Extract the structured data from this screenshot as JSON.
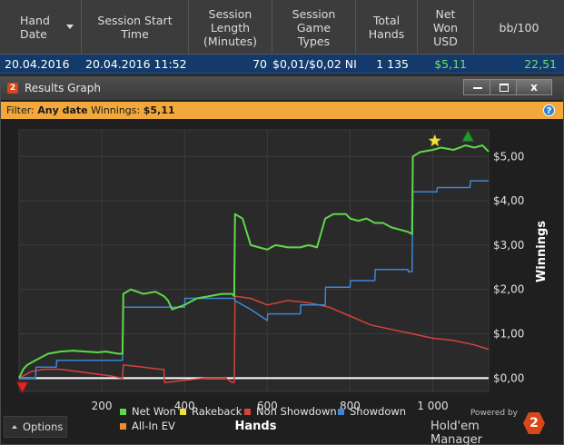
{
  "table": {
    "headers": [
      {
        "label": "Hand\nDate",
        "sortable": true
      },
      {
        "label": "Session Start\nTime"
      },
      {
        "label": "Session\nLength\n(Minutes)"
      },
      {
        "label": "Session\nGame\nTypes"
      },
      {
        "label": "Total\nHands"
      },
      {
        "label": "Net\nWon\nUSD"
      },
      {
        "label": "bb/100"
      }
    ],
    "row": {
      "hand_date": "20.04.2016",
      "start_time": "20.04.2016 11:52",
      "length": "70",
      "game_types": "$0,01/$0,02 NI",
      "total_hands": "1 135",
      "net_won": "$5,11",
      "bb100": "22,51"
    }
  },
  "window": {
    "title": "Results Graph",
    "badge": "2",
    "close_symbol": "x",
    "help_symbol": "?"
  },
  "filter": {
    "label": "Filter:",
    "date_value": "Any date",
    "winnings_label": "Winnings:",
    "winnings_value": "$5,11"
  },
  "options": {
    "label": "Options"
  },
  "brand": {
    "powered_by": "Powered by",
    "name": "Hold'em Manager",
    "logo_text": "2"
  },
  "colors": {
    "net_won": "#5fd84a",
    "rakeback": "#f0e03a",
    "non_showdown": "#d6423d",
    "showdown": "#3e86d6",
    "all_in_ev": "#f08a2a",
    "zero_line": "#ffffff"
  },
  "chart_data": {
    "type": "line",
    "xlabel": "Hands",
    "ylabel": "Winnings",
    "xlim": [
      0,
      1135
    ],
    "ylim": [
      -0.3,
      5.6
    ],
    "x_ticks": [
      200,
      400,
      600,
      800,
      1000
    ],
    "x_tick_labels": [
      "200",
      "400",
      "600",
      "800",
      "1 000"
    ],
    "y_ticks": [
      0,
      1,
      2,
      3,
      4,
      5
    ],
    "y_tick_labels": [
      "$0,00",
      "$1,00",
      "$2,00",
      "$3,00",
      "$4,00",
      "$5,00"
    ],
    "legend": [
      "Net Won",
      "Rakeback",
      "Non Showdown",
      "Showdown",
      "All-In EV"
    ],
    "series": [
      {
        "name": "Net Won",
        "x": [
          0,
          10,
          20,
          40,
          70,
          100,
          130,
          160,
          190,
          210,
          240,
          250,
          252,
          270,
          300,
          330,
          350,
          360,
          370,
          400,
          430,
          460,
          490,
          515,
          520,
          522,
          540,
          560,
          580,
          600,
          620,
          650,
          680,
          700,
          720,
          740,
          760,
          790,
          800,
          820,
          840,
          860,
          880,
          900,
          920,
          940,
          950,
          952,
          970,
          1000,
          1020,
          1050,
          1080,
          1100,
          1120,
          1135
        ],
        "y": [
          0.0,
          0.2,
          0.3,
          0.4,
          0.55,
          0.6,
          0.62,
          0.6,
          0.58,
          0.6,
          0.55,
          0.55,
          1.9,
          2.0,
          1.9,
          1.95,
          1.85,
          1.75,
          1.55,
          1.65,
          1.8,
          1.85,
          1.9,
          1.9,
          1.85,
          3.7,
          3.6,
          3.0,
          2.95,
          2.9,
          3.0,
          2.95,
          2.95,
          3.0,
          2.95,
          3.6,
          3.7,
          3.7,
          3.6,
          3.55,
          3.6,
          3.5,
          3.5,
          3.4,
          3.35,
          3.3,
          3.25,
          5.0,
          5.1,
          5.15,
          5.2,
          5.15,
          5.25,
          5.2,
          5.25,
          5.11
        ]
      },
      {
        "name": "Showdown",
        "x": [
          0,
          40,
          41,
          90,
          91,
          250,
          252,
          400,
          401,
          520,
          521,
          560,
          600,
          601,
          680,
          681,
          740,
          741,
          800,
          801,
          860,
          861,
          940,
          941,
          950,
          952,
          1010,
          1011,
          1090,
          1091,
          1135
        ],
        "y": [
          0.0,
          0.0,
          0.25,
          0.25,
          0.4,
          0.4,
          1.6,
          1.6,
          1.8,
          1.8,
          1.75,
          1.55,
          1.3,
          1.45,
          1.45,
          1.65,
          1.65,
          2.05,
          2.05,
          2.2,
          2.2,
          2.45,
          2.45,
          2.4,
          2.4,
          4.2,
          4.2,
          4.3,
          4.3,
          4.45,
          4.45
        ]
      },
      {
        "name": "Non Showdown",
        "x": [
          0,
          30,
          60,
          100,
          140,
          180,
          220,
          250,
          252,
          300,
          340,
          350,
          352,
          400,
          450,
          500,
          515,
          520,
          522,
          560,
          600,
          650,
          700,
          750,
          800,
          850,
          900,
          950,
          1000,
          1050,
          1100,
          1135
        ],
        "y": [
          0.0,
          0.15,
          0.2,
          0.2,
          0.15,
          0.1,
          0.05,
          0.0,
          0.3,
          0.25,
          0.2,
          0.2,
          -0.1,
          -0.05,
          0.0,
          0.0,
          -0.1,
          -0.1,
          1.85,
          1.8,
          1.65,
          1.75,
          1.7,
          1.6,
          1.4,
          1.2,
          1.1,
          1.0,
          0.9,
          0.85,
          0.75,
          0.65
        ]
      },
      {
        "name": "Zero",
        "x": [
          0,
          1135
        ],
        "y": [
          0,
          0
        ]
      }
    ],
    "markers": [
      {
        "name": "Rakeback",
        "shape": "star",
        "x": 1005,
        "y": 5.35
      },
      {
        "name": "Net Won high",
        "shape": "triangle-up",
        "x": 1085,
        "y": 5.45
      },
      {
        "name": "Net Won low",
        "shape": "triangle-down",
        "x": 8,
        "y": -0.2
      }
    ]
  }
}
